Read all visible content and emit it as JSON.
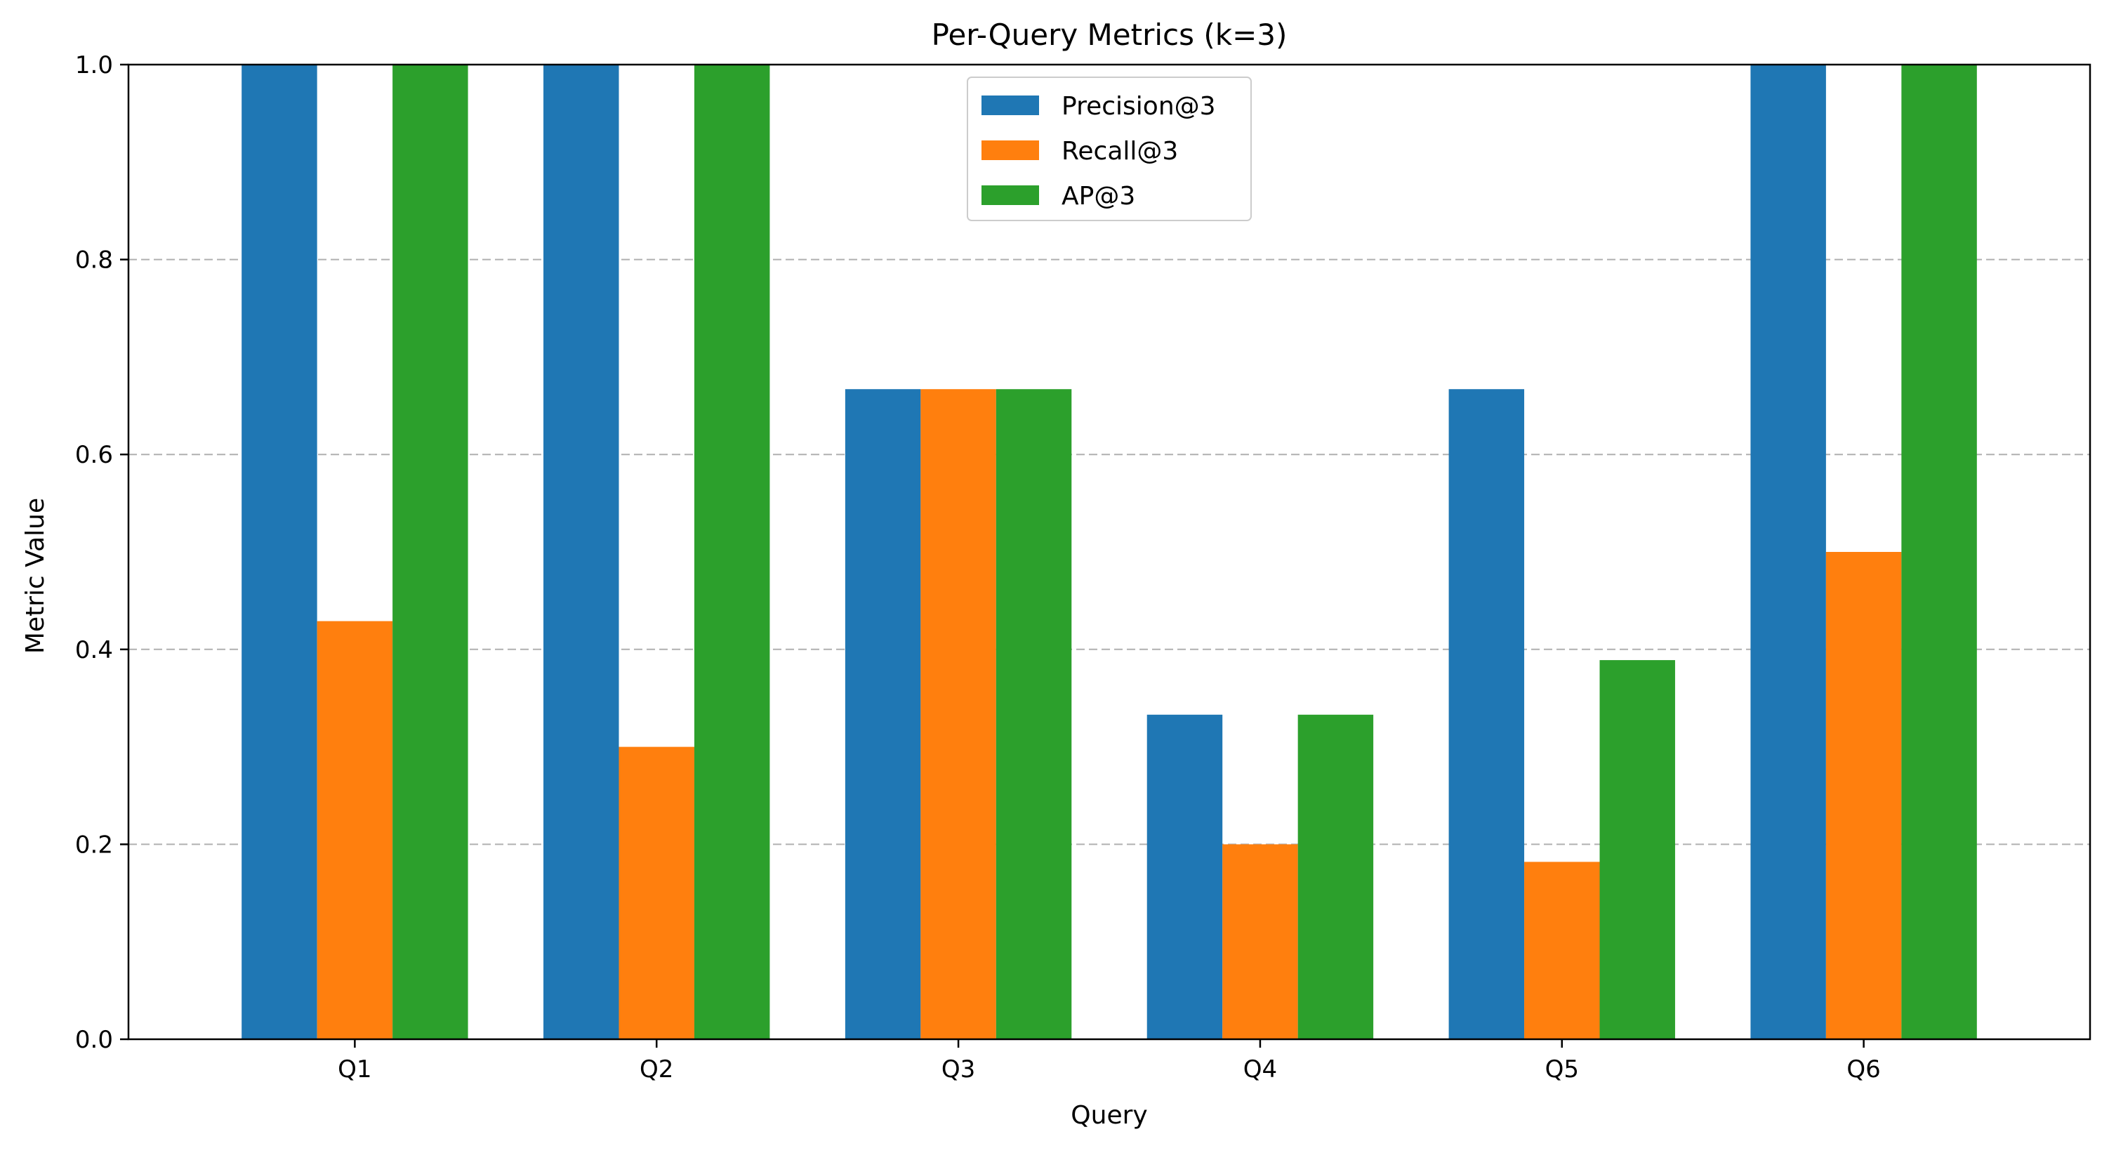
{
  "chart_data": {
    "type": "bar",
    "title": "Per-Query Metrics (k=3)",
    "xlabel": "Query",
    "ylabel": "Metric Value",
    "categories": [
      "Q1",
      "Q2",
      "Q3",
      "Q4",
      "Q5",
      "Q6"
    ],
    "ylim": [
      0,
      1.0
    ],
    "yticks": [
      "0.0",
      "0.2",
      "0.4",
      "0.6",
      "0.8",
      "1.0"
    ],
    "grid": "y-dashed",
    "legend_position": "top-center",
    "series": [
      {
        "name": "Precision@3",
        "color": "#1f77b4",
        "values": [
          1.0,
          1.0,
          0.667,
          0.333,
          0.667,
          1.0
        ]
      },
      {
        "name": "Recall@3",
        "color": "#ff7f0e",
        "values": [
          0.429,
          0.3,
          0.667,
          0.2,
          0.182,
          0.5
        ]
      },
      {
        "name": "AP@3",
        "color": "#2ca02c",
        "values": [
          1.0,
          1.0,
          0.667,
          0.333,
          0.389,
          1.0
        ]
      }
    ]
  }
}
